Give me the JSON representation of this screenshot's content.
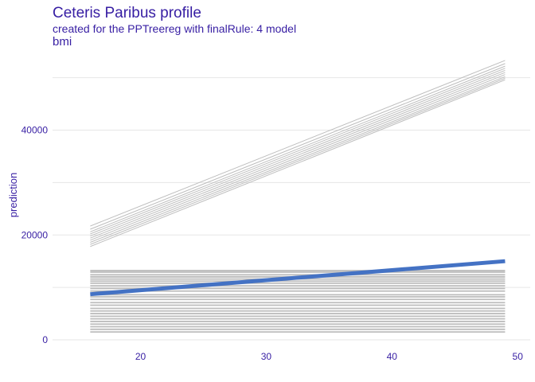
{
  "chart_data": {
    "type": "line",
    "title": "Ceteris Paribus profile",
    "subtitle": "created for the PPTreereg with finalRule:  4 model",
    "panel": "bmi",
    "xlabel": "",
    "ylabel": "prediction",
    "xlim": [
      13,
      51
    ],
    "ylim": [
      0,
      54500
    ],
    "xticks": [
      20,
      30,
      40,
      50
    ],
    "yticks": [
      0,
      20000,
      40000
    ],
    "grid": true,
    "legend": "none",
    "colors": {
      "profiles": "#bdbdbd",
      "mean": "#4472c4",
      "text": "#371ea3",
      "grid": "#e6e6e6"
    },
    "x": [
      16,
      49
    ],
    "upper_series": [
      {
        "values": [
          21700,
          53300
        ]
      },
      {
        "values": [
          21100,
          52700
        ]
      },
      {
        "values": [
          20600,
          52200
        ]
      },
      {
        "values": [
          20200,
          51800
        ]
      },
      {
        "values": [
          19800,
          51400
        ]
      },
      {
        "values": [
          19400,
          51000
        ]
      },
      {
        "values": [
          19000,
          50600
        ]
      },
      {
        "values": [
          18600,
          50200
        ]
      },
      {
        "values": [
          18200,
          49900
        ]
      },
      {
        "values": [
          17800,
          49600
        ]
      }
    ],
    "lower_series": [
      {
        "values": [
          13200,
          13200
        ]
      },
      {
        "values": [
          12900,
          12900
        ]
      },
      {
        "values": [
          12400,
          12400
        ]
      },
      {
        "values": [
          12000,
          12000
        ]
      },
      {
        "values": [
          11600,
          11600
        ]
      },
      {
        "values": [
          11200,
          11200
        ]
      },
      {
        "values": [
          10800,
          10800
        ]
      },
      {
        "values": [
          10300,
          10300
        ]
      },
      {
        "values": [
          9800,
          9800
        ]
      },
      {
        "values": [
          9300,
          9300
        ]
      },
      {
        "values": [
          8600,
          8600
        ]
      },
      {
        "values": [
          8200,
          8200
        ]
      },
      {
        "values": [
          7700,
          7700
        ]
      },
      {
        "values": [
          7100,
          7100
        ]
      },
      {
        "values": [
          6600,
          6600
        ]
      },
      {
        "values": [
          6000,
          6000
        ]
      },
      {
        "values": [
          5500,
          5500
        ]
      },
      {
        "values": [
          5000,
          5000
        ]
      },
      {
        "values": [
          4500,
          4500
        ]
      },
      {
        "values": [
          4000,
          4000
        ]
      },
      {
        "values": [
          3500,
          3500
        ]
      },
      {
        "values": [
          3000,
          3000
        ]
      },
      {
        "values": [
          2500,
          2500
        ]
      },
      {
        "values": [
          2000,
          2000
        ]
      },
      {
        "values": [
          1500,
          1500
        ]
      }
    ],
    "mean_series": {
      "x": [
        16,
        49
      ],
      "values": [
        8700,
        15000
      ]
    }
  }
}
